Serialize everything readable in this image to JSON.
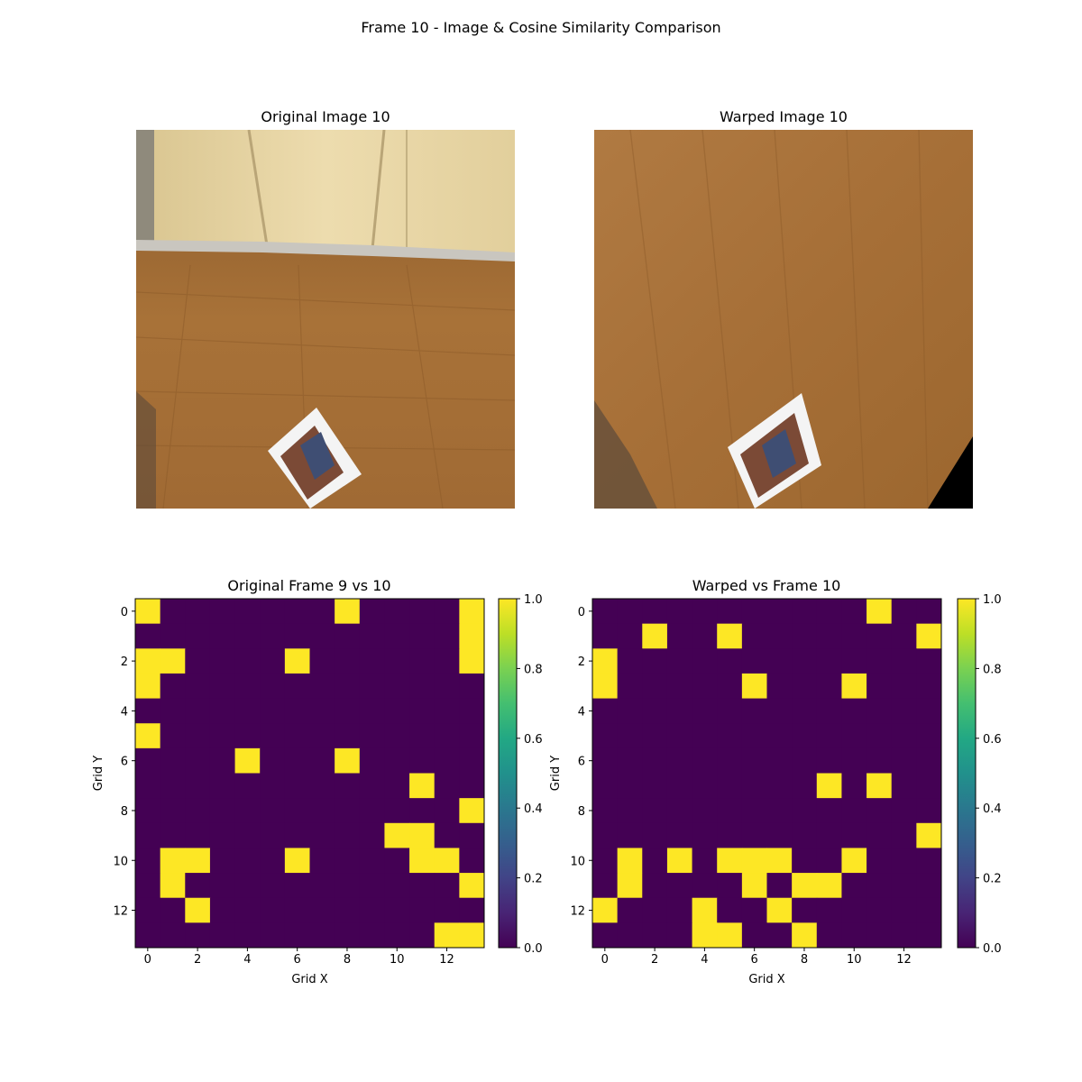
{
  "figure": {
    "title": "Frame 10 - Image & Cosine Similarity Comparison"
  },
  "images": [
    {
      "title": "Original Image 10",
      "photo": "original-floor-photo"
    },
    {
      "title": "Warped Image 10",
      "photo": "warped-floor-photo"
    }
  ],
  "colors": {
    "viridis_low": "#440154",
    "viridis_high": "#fde725",
    "wood": "#a8733d",
    "cabinet": "#e6d3a3"
  },
  "chart_data": [
    {
      "type": "heatmap",
      "title": "Original Frame 9 vs 10",
      "xlabel": "Grid X",
      "ylabel": "Grid Y",
      "x_ticks": [
        0,
        2,
        4,
        6,
        8,
        10,
        12
      ],
      "y_ticks": [
        0,
        2,
        4,
        6,
        8,
        10,
        12
      ],
      "colorbar_ticks": [
        "0.0",
        "0.2",
        "0.4",
        "0.6",
        "0.8",
        "1.0"
      ],
      "vmin": 0,
      "vmax": 1,
      "colormap": "viridis",
      "grid_size": 14,
      "values": [
        [
          1,
          0,
          0,
          0,
          0,
          0,
          0,
          0,
          1,
          0,
          0,
          0,
          0,
          1
        ],
        [
          0,
          0,
          0,
          0,
          0,
          0,
          0,
          0,
          0,
          0,
          0,
          0,
          0,
          1
        ],
        [
          1,
          1,
          0,
          0,
          0,
          0,
          1,
          0,
          0,
          0,
          0,
          0,
          0,
          1
        ],
        [
          1,
          0,
          0,
          0,
          0,
          0,
          0,
          0,
          0,
          0,
          0,
          0,
          0,
          0
        ],
        [
          0,
          0,
          0,
          0,
          0,
          0,
          0,
          0,
          0,
          0,
          0,
          0,
          0,
          0
        ],
        [
          1,
          0,
          0,
          0,
          0,
          0,
          0,
          0,
          0,
          0,
          0,
          0,
          0,
          0
        ],
        [
          0,
          0,
          0,
          0,
          1,
          0,
          0,
          0,
          1,
          0,
          0,
          0,
          0,
          0
        ],
        [
          0,
          0,
          0,
          0,
          0,
          0,
          0,
          0,
          0,
          0,
          0,
          1,
          0,
          0
        ],
        [
          0,
          0,
          0,
          0,
          0,
          0,
          0,
          0,
          0,
          0,
          0,
          0,
          0,
          1
        ],
        [
          0,
          0,
          0,
          0,
          0,
          0,
          0,
          0,
          0,
          0,
          1,
          1,
          0,
          0
        ],
        [
          0,
          1,
          1,
          0,
          0,
          0,
          1,
          0,
          0,
          0,
          0,
          1,
          1,
          0
        ],
        [
          0,
          1,
          0,
          0,
          0,
          0,
          0,
          0,
          0,
          0,
          0,
          0,
          0,
          1
        ],
        [
          0,
          0,
          1,
          0,
          0,
          0,
          0,
          0,
          0,
          0,
          0,
          0,
          0,
          0
        ],
        [
          0,
          0,
          0,
          0,
          0,
          0,
          0,
          0,
          0,
          0,
          0,
          0,
          1,
          1
        ]
      ]
    },
    {
      "type": "heatmap",
      "title": "Warped vs Frame 10",
      "xlabel": "Grid X",
      "ylabel": "Grid Y",
      "x_ticks": [
        0,
        2,
        4,
        6,
        8,
        10,
        12
      ],
      "y_ticks": [
        0,
        2,
        4,
        6,
        8,
        10,
        12
      ],
      "colorbar_ticks": [
        "0.0",
        "0.2",
        "0.4",
        "0.6",
        "0.8",
        "1.0"
      ],
      "vmin": 0,
      "vmax": 1,
      "colormap": "viridis",
      "grid_size": 14,
      "values": [
        [
          0,
          0,
          0,
          0,
          0,
          0,
          0,
          0,
          0,
          0,
          0,
          1,
          0,
          0
        ],
        [
          0,
          0,
          1,
          0,
          0,
          1,
          0,
          0,
          0,
          0,
          0,
          0,
          0,
          1
        ],
        [
          1,
          0,
          0,
          0,
          0,
          0,
          0,
          0,
          0,
          0,
          0,
          0,
          0,
          0
        ],
        [
          1,
          0,
          0,
          0,
          0,
          0,
          1,
          0,
          0,
          0,
          1,
          0,
          0,
          0
        ],
        [
          0,
          0,
          0,
          0,
          0,
          0,
          0,
          0,
          0,
          0,
          0,
          0,
          0,
          0
        ],
        [
          0,
          0,
          0,
          0,
          0,
          0,
          0,
          0,
          0,
          0,
          0,
          0,
          0,
          0
        ],
        [
          0,
          0,
          0,
          0,
          0,
          0,
          0,
          0,
          0,
          0,
          0,
          0,
          0,
          0
        ],
        [
          0,
          0,
          0,
          0,
          0,
          0,
          0,
          0,
          0,
          1,
          0,
          1,
          0,
          0
        ],
        [
          0,
          0,
          0,
          0,
          0,
          0,
          0,
          0,
          0,
          0,
          0,
          0,
          0,
          0
        ],
        [
          0,
          0,
          0,
          0,
          0,
          0,
          0,
          0,
          0,
          0,
          0,
          0,
          0,
          1
        ],
        [
          0,
          1,
          0,
          1,
          0,
          1,
          1,
          1,
          0,
          0,
          1,
          0,
          0,
          0
        ],
        [
          0,
          1,
          0,
          0,
          0,
          0,
          1,
          0,
          1,
          1,
          0,
          0,
          0,
          0
        ],
        [
          1,
          0,
          0,
          0,
          1,
          0,
          0,
          1,
          0,
          0,
          0,
          0,
          0,
          0
        ],
        [
          0,
          0,
          0,
          0,
          1,
          1,
          0,
          0,
          1,
          0,
          0,
          0,
          0,
          0
        ]
      ]
    }
  ]
}
